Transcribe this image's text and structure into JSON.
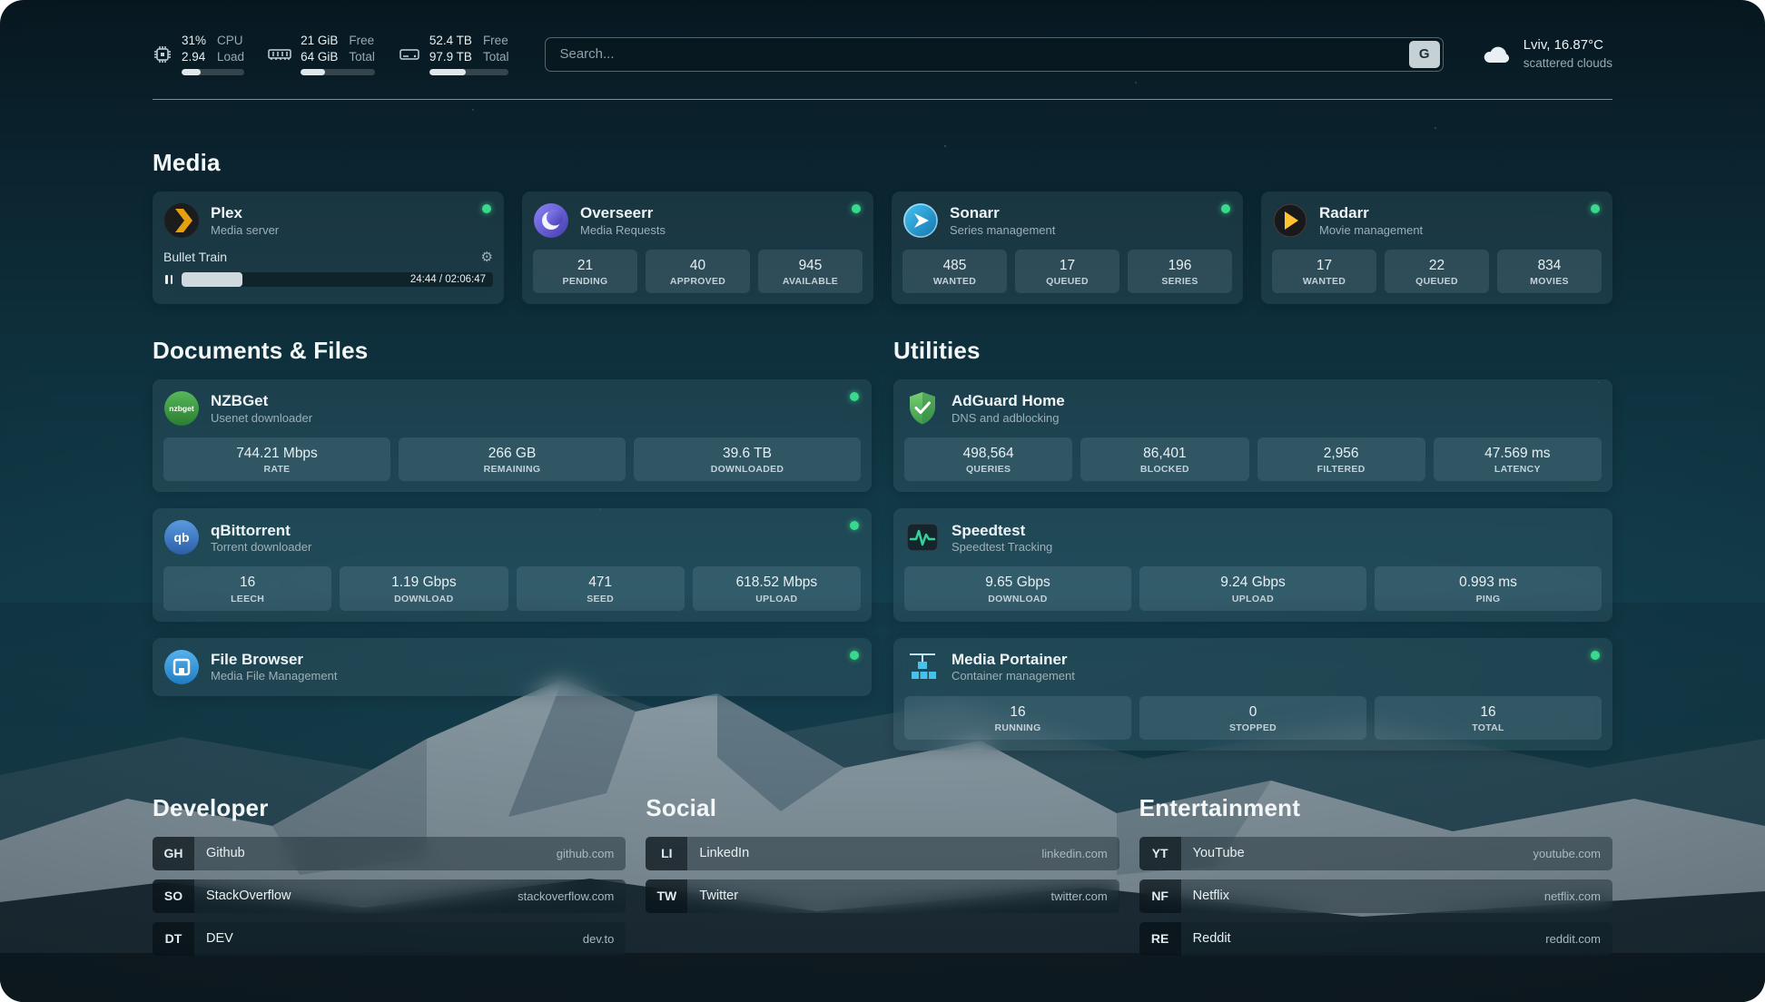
{
  "topbar": {
    "cpu": {
      "value_top": "31%",
      "value_bottom": "2.94",
      "label_top": "CPU",
      "label_bottom": "Load",
      "percent": 31
    },
    "memory": {
      "value_top": "21 GiB",
      "value_bottom": "64 GiB",
      "label_top": "Free",
      "label_bottom": "Total",
      "percent": 33
    },
    "disk": {
      "value_top": "52.4 TB",
      "value_bottom": "97.9 TB",
      "label_top": "Free",
      "label_bottom": "Total",
      "percent": 46
    },
    "search": {
      "placeholder": "Search...",
      "provider": "G"
    },
    "weather": {
      "location": "Lviv, 16.87°C",
      "condition": "scattered clouds"
    }
  },
  "sections": {
    "media": {
      "title": "Media"
    },
    "documents": {
      "title": "Documents & Files"
    },
    "utilities": {
      "title": "Utilities"
    },
    "developer": {
      "title": "Developer"
    },
    "social": {
      "title": "Social"
    },
    "entertainment": {
      "title": "Entertainment"
    }
  },
  "services": {
    "plex": {
      "name": "Plex",
      "description": "Media server",
      "now_playing": {
        "title": "Bullet Train",
        "time": "24:44 / 02:06:47",
        "percent": 19.5
      }
    },
    "overseerr": {
      "name": "Overseerr",
      "description": "Media Requests",
      "stats": [
        {
          "value": "21",
          "label": "PENDING"
        },
        {
          "value": "40",
          "label": "APPROVED"
        },
        {
          "value": "945",
          "label": "AVAILABLE"
        }
      ]
    },
    "sonarr": {
      "name": "Sonarr",
      "description": "Series management",
      "stats": [
        {
          "value": "485",
          "label": "WANTED"
        },
        {
          "value": "17",
          "label": "QUEUED"
        },
        {
          "value": "196",
          "label": "SERIES"
        }
      ]
    },
    "radarr": {
      "name": "Radarr",
      "description": "Movie management",
      "stats": [
        {
          "value": "17",
          "label": "WANTED"
        },
        {
          "value": "22",
          "label": "QUEUED"
        },
        {
          "value": "834",
          "label": "MOVIES"
        }
      ]
    },
    "nzbget": {
      "name": "NZBGet",
      "description": "Usenet downloader",
      "stats": [
        {
          "value": "744.21 Mbps",
          "label": "RATE"
        },
        {
          "value": "266 GB",
          "label": "REMAINING"
        },
        {
          "value": "39.6 TB",
          "label": "DOWNLOADED"
        }
      ]
    },
    "qbittorrent": {
      "name": "qBittorrent",
      "description": "Torrent downloader",
      "stats": [
        {
          "value": "16",
          "label": "LEECH"
        },
        {
          "value": "1.19 Gbps",
          "label": "DOWNLOAD"
        },
        {
          "value": "471",
          "label": "SEED"
        },
        {
          "value": "618.52 Mbps",
          "label": "UPLOAD"
        }
      ]
    },
    "filebrowser": {
      "name": "File Browser",
      "description": "Media File Management"
    },
    "adguard": {
      "name": "AdGuard Home",
      "description": "DNS and adblocking",
      "stats": [
        {
          "value": "498,564",
          "label": "QUERIES"
        },
        {
          "value": "86,401",
          "label": "BLOCKED"
        },
        {
          "value": "2,956",
          "label": "FILTERED"
        },
        {
          "value": "47.569 ms",
          "label": "LATENCY"
        }
      ]
    },
    "speedtest": {
      "name": "Speedtest",
      "description": "Speedtest Tracking",
      "stats": [
        {
          "value": "9.65 Gbps",
          "label": "DOWNLOAD"
        },
        {
          "value": "9.24 Gbps",
          "label": "UPLOAD"
        },
        {
          "value": "0.993 ms",
          "label": "PING"
        }
      ]
    },
    "portainer": {
      "name": "Media Portainer",
      "description": "Container management",
      "stats": [
        {
          "value": "16",
          "label": "RUNNING"
        },
        {
          "value": "0",
          "label": "STOPPED"
        },
        {
          "value": "16",
          "label": "TOTAL"
        }
      ]
    }
  },
  "bookmarks": {
    "developer": [
      {
        "abbr": "GH",
        "name": "Github",
        "url": "github.com"
      },
      {
        "abbr": "SO",
        "name": "StackOverflow",
        "url": "stackoverflow.com"
      },
      {
        "abbr": "DT",
        "name": "DEV",
        "url": "dev.to"
      }
    ],
    "social": [
      {
        "abbr": "LI",
        "name": "LinkedIn",
        "url": "linkedin.com"
      },
      {
        "abbr": "TW",
        "name": "Twitter",
        "url": "twitter.com"
      }
    ],
    "entertainment": [
      {
        "abbr": "YT",
        "name": "YouTube",
        "url": "youtube.com"
      },
      {
        "abbr": "NF",
        "name": "Netflix",
        "url": "netflix.com"
      },
      {
        "abbr": "RE",
        "name": "Reddit",
        "url": "reddit.com"
      }
    ]
  },
  "icons": {
    "topbar": [
      "cpu-icon",
      "memory-icon",
      "disk-icon",
      "weather-cloud-icon"
    ],
    "services": [
      "plex-icon",
      "overseerr-icon",
      "sonarr-icon",
      "radarr-icon",
      "nzbget-icon",
      "qbittorrent-icon",
      "filebrowser-icon",
      "adguard-icon",
      "speedtest-icon",
      "portainer-icon"
    ],
    "misc": [
      "gear-icon",
      "pause-icon"
    ]
  },
  "colors": {
    "status_online": "#38d98a",
    "plex_accent": "#e5a00d",
    "radarr_accent": "#f7b500",
    "speedtest_accent": "#34d399"
  }
}
